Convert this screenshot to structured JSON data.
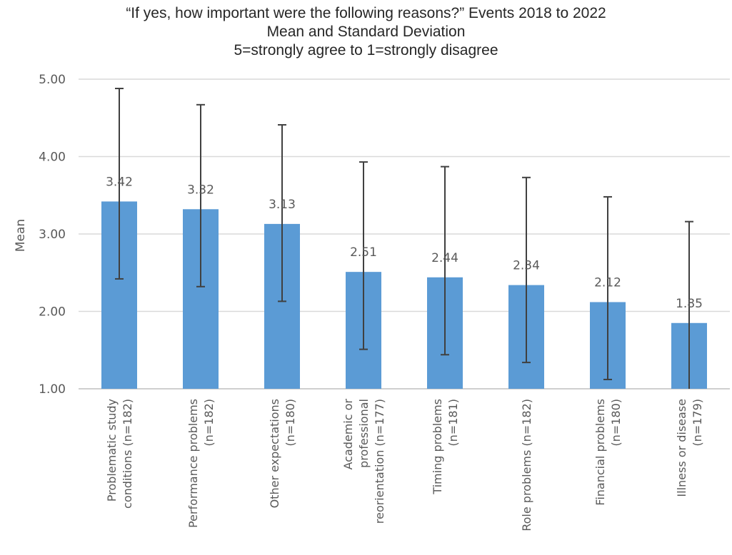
{
  "chart_data": {
    "type": "bar",
    "title": "“If yes, how important were the following reasons?” Events 2018 to 2022",
    "subtitle_lines": [
      "Mean and Standard Deviation",
      "5=strongly agree to 1=strongly disagree"
    ],
    "xlabel": "",
    "ylabel": "Mean",
    "ylim": [
      1.0,
      5.0
    ],
    "yticks": [
      "1.00",
      "2.00",
      "3.00",
      "4.00",
      "5.00"
    ],
    "grid": true,
    "categories": [
      [
        "Problematic study",
        "conditions (n=182)"
      ],
      [
        "Performance problems",
        "(n=182)"
      ],
      [
        "Other expectations",
        "(n=180)"
      ],
      [
        "Academic or",
        "professional",
        "reorientation (n=177)"
      ],
      [
        "Timing problems",
        "(n=181)"
      ],
      [
        "Role problems (n=182)"
      ],
      [
        "Financial problems",
        "(n=180)"
      ],
      [
        "Illness or disease",
        "(n=179)"
      ]
    ],
    "values": [
      3.42,
      3.32,
      3.13,
      2.51,
      2.44,
      2.34,
      2.12,
      1.85
    ],
    "data_labels": [
      "3.42",
      "3.32",
      "3.13",
      "2.51",
      "2.44",
      "2.34",
      "2.12",
      "1.85"
    ],
    "error_bars": [
      [
        2.42,
        4.88
      ],
      [
        2.32,
        4.67
      ],
      [
        2.13,
        4.41
      ],
      [
        1.51,
        3.93
      ],
      [
        1.44,
        3.87
      ],
      [
        1.34,
        3.73
      ],
      [
        1.12,
        3.48
      ],
      [
        1.0,
        3.16
      ]
    ],
    "colors": {
      "bar": "#5b9bd5",
      "error": "#404040",
      "grid": "#d9d9d9",
      "text": "#595959"
    }
  }
}
